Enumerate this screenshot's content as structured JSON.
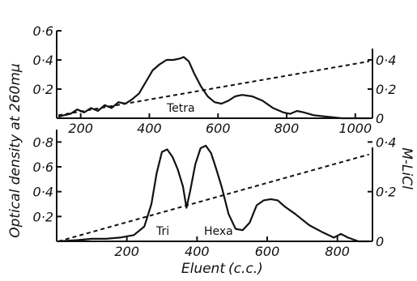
{
  "chart_data": [
    {
      "type": "line",
      "id": "top",
      "annotation": "Tetra",
      "xlim": [
        130,
        1050
      ],
      "ylim": [
        0,
        0.6
      ],
      "xticks": [
        200,
        400,
        600,
        800,
        1000
      ],
      "xtick_labels": [
        "200",
        "400",
        "600",
        "800",
        "1000"
      ],
      "yticks": [
        0.2,
        0.4,
        0.6
      ],
      "ytick_labels": [
        "0·2",
        "0·4",
        "0·6"
      ],
      "y2lim": [
        0,
        0.6
      ],
      "y2ticks": [
        0,
        0.2,
        0.4
      ],
      "y2tick_labels": [
        "0",
        "0·2",
        "0·4"
      ],
      "series": [
        {
          "style": "solid",
          "x": [
            135,
            150,
            170,
            190,
            210,
            230,
            250,
            270,
            290,
            310,
            330,
            350,
            370,
            390,
            410,
            430,
            450,
            470,
            490,
            500,
            515,
            530,
            550,
            570,
            590,
            610,
            630,
            650,
            670,
            700,
            730,
            760,
            790,
            810,
            830,
            850,
            880,
            920,
            960,
            1000,
            1040
          ],
          "y": [
            0.01,
            0.02,
            0.03,
            0.06,
            0.04,
            0.07,
            0.05,
            0.09,
            0.07,
            0.11,
            0.1,
            0.13,
            0.17,
            0.25,
            0.33,
            0.37,
            0.4,
            0.4,
            0.41,
            0.42,
            0.39,
            0.31,
            0.22,
            0.15,
            0.11,
            0.1,
            0.12,
            0.15,
            0.16,
            0.15,
            0.12,
            0.07,
            0.04,
            0.03,
            0.05,
            0.04,
            0.02,
            0.01,
            0.0,
            0.0,
            0.0
          ]
        },
        {
          "style": "dashed",
          "axis": "right",
          "x": [
            135,
            1040
          ],
          "y": [
            0.02,
            0.39
          ]
        }
      ]
    },
    {
      "type": "line",
      "id": "bottom",
      "annotations": [
        "Tri",
        "Hexa"
      ],
      "xlim": [
        0,
        900
      ],
      "ylim": [
        0,
        0.9
      ],
      "xticks": [
        200,
        400,
        600,
        800
      ],
      "xtick_labels": [
        "200",
        "400",
        "600",
        "800"
      ],
      "yticks": [
        0.2,
        0.4,
        0.6,
        0.8
      ],
      "ytick_labels": [
        "0·2",
        "0·4",
        "0·6",
        "0·8"
      ],
      "y2lim": [
        0,
        0.45
      ],
      "y2ticks": [
        0,
        0.2,
        0.4
      ],
      "y2tick_labels": [
        "0",
        "0·2",
        "0·4"
      ],
      "series": [
        {
          "style": "solid",
          "x": [
            5,
            60,
            100,
            140,
            180,
            220,
            250,
            270,
            285,
            300,
            315,
            330,
            345,
            360,
            370,
            380,
            395,
            410,
            425,
            440,
            455,
            470,
            490,
            510,
            530,
            550,
            570,
            590,
            610,
            630,
            650,
            680,
            720,
            760,
            790,
            810,
            830,
            860,
            890
          ],
          "y": [
            0.0,
            0.01,
            0.02,
            0.02,
            0.03,
            0.05,
            0.12,
            0.3,
            0.55,
            0.72,
            0.74,
            0.68,
            0.58,
            0.44,
            0.27,
            0.4,
            0.62,
            0.75,
            0.77,
            0.71,
            0.58,
            0.44,
            0.22,
            0.1,
            0.09,
            0.15,
            0.29,
            0.33,
            0.34,
            0.33,
            0.28,
            0.22,
            0.13,
            0.07,
            0.03,
            0.06,
            0.03,
            0.0,
            0.0
          ]
        },
        {
          "style": "dashed",
          "axis": "right",
          "x": [
            5,
            890
          ],
          "y": [
            0.0,
            0.35
          ]
        }
      ]
    }
  ],
  "labels": {
    "ylabel": "Optical density at 260mμ",
    "y2label": "M-LiCl",
    "xlabel": "Eluent",
    "xlabel_unit": "(c.c.)",
    "top_annotation": "Tetra",
    "bottom_annotation_left": "Tri",
    "bottom_annotation_right": "Hexa"
  }
}
